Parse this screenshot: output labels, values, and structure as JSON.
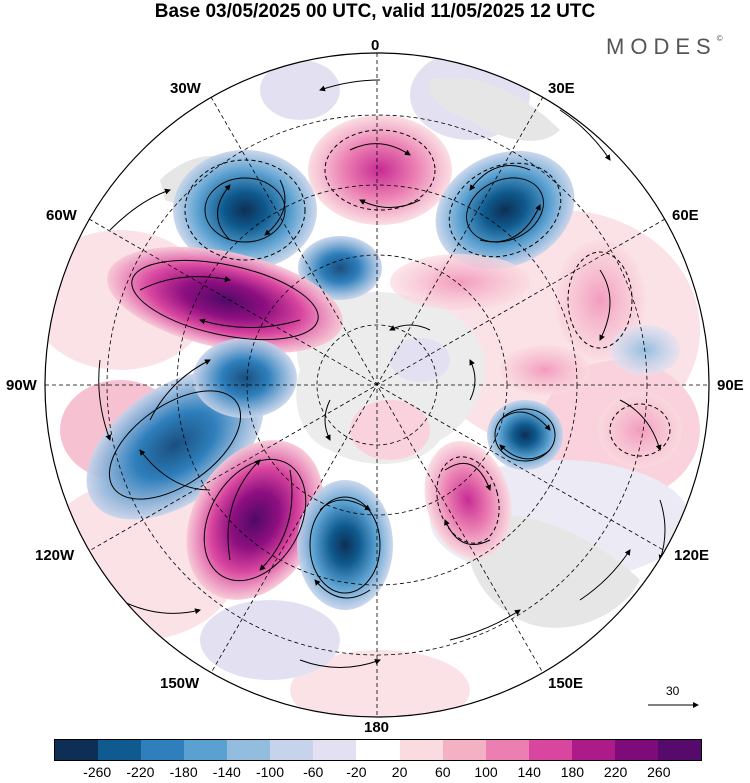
{
  "title": "Base 03/05/2025 00 UTC, valid 11/05/2025 12 UTC",
  "brand": "MODES",
  "brand_mark": "©",
  "map": {
    "projection": "south polar stereographic",
    "longitude_labels": {
      "top": "0",
      "top_left": "30W",
      "top_right": "30E",
      "upper_left": "60W",
      "upper_right": "60E",
      "left": "90W",
      "right": "90E",
      "lower_left": "120W",
      "lower_right": "120E",
      "bottom_left": "150W",
      "bottom_right": "150E",
      "bottom": "180"
    },
    "wind_vector_reference": "30"
  },
  "colorbar": {
    "colors": [
      "#0d2f55",
      "#0f5a8e",
      "#2e7fbc",
      "#5aa0d0",
      "#92bddf",
      "#c6d3ea",
      "#e3e1f1",
      "#ffffff",
      "#fadbe0",
      "#f4b1c4",
      "#eb7fb2",
      "#d9469f",
      "#ad1a8a",
      "#7d0b7a",
      "#560a6b"
    ],
    "ticks": [
      "-260",
      "-220",
      "-180",
      "-140",
      "-100",
      "-60",
      "-20",
      "20",
      "60",
      "100",
      "140",
      "180",
      "220",
      "260"
    ]
  }
}
